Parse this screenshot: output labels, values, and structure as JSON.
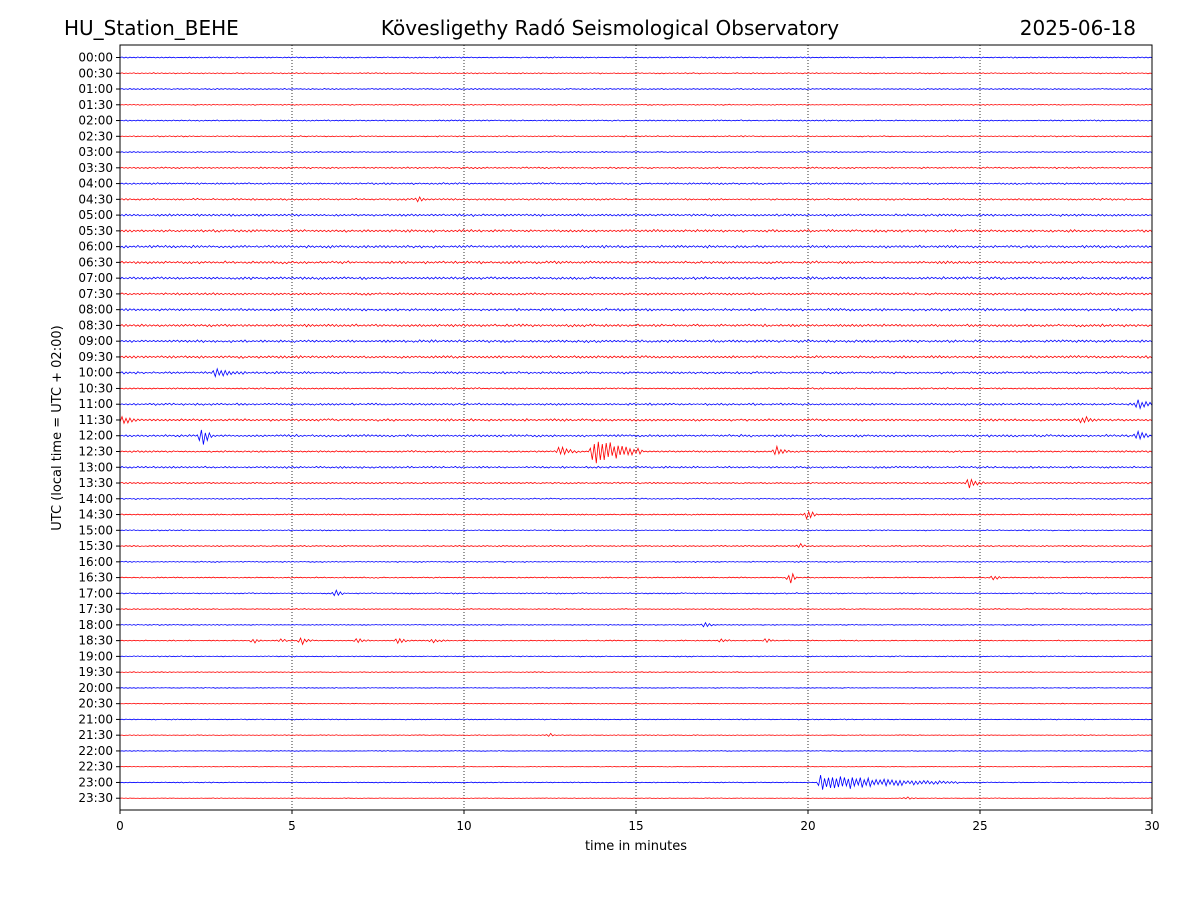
{
  "header": {
    "station": "HU_Station_BEHE",
    "observatory": "Kövesligethy Radó Seismological Observatory",
    "date": "2025-06-18"
  },
  "colors": {
    "even_hour_trace": "#0000ff",
    "half_hour_trace": "#ff0000"
  },
  "chart_data": {
    "type": "line",
    "title": "Kövesligethy Radó Seismological Observatory",
    "xlabel": "time in minutes",
    "ylabel": "UTC (local time = UTC + 02:00)",
    "xlim": [
      0,
      30
    ],
    "x_ticks": [
      0,
      5,
      10,
      15,
      20,
      25,
      30
    ],
    "grid": "vertical dotted lines at x ticks",
    "row_labels": [
      "00:00",
      "00:30",
      "01:00",
      "01:30",
      "02:00",
      "02:30",
      "03:00",
      "03:30",
      "04:00",
      "04:30",
      "05:00",
      "05:30",
      "06:00",
      "06:30",
      "07:00",
      "07:30",
      "08:00",
      "08:30",
      "09:00",
      "09:30",
      "10:00",
      "10:30",
      "11:00",
      "11:30",
      "12:00",
      "12:30",
      "13:00",
      "13:30",
      "14:00",
      "14:30",
      "15:00",
      "15:30",
      "16:00",
      "16:30",
      "17:00",
      "17:30",
      "18:00",
      "18:30",
      "19:00",
      "19:30",
      "20:00",
      "20:30",
      "21:00",
      "21:30",
      "22:00",
      "22:30",
      "23:00",
      "23:30"
    ],
    "row_noise": [
      0.5,
      0.45,
      0.45,
      0.4,
      0.5,
      0.45,
      0.5,
      0.6,
      0.7,
      0.7,
      0.9,
      1.0,
      1.0,
      1.0,
      1.0,
      0.9,
      1.0,
      1.0,
      1.0,
      1.0,
      0.9,
      0.6,
      0.8,
      0.9,
      0.9,
      0.7,
      0.8,
      0.6,
      0.5,
      0.5,
      0.45,
      0.5,
      0.45,
      0.45,
      0.5,
      0.4,
      0.4,
      0.4,
      0.4,
      0.35,
      0.3,
      0.3,
      0.35,
      0.3,
      0.3,
      0.25,
      0.35,
      0.25
    ],
    "events": [
      {
        "row": "04:30",
        "t": 8.7,
        "amp": 0.9,
        "dur": 0.2
      },
      {
        "row": "10:00",
        "t": 2.8,
        "amp": 1.2,
        "dur": 0.8
      },
      {
        "row": "11:00",
        "t": 29.6,
        "amp": 1.4,
        "dur": 0.5
      },
      {
        "row": "11:30",
        "t": 0.1,
        "amp": 1.5,
        "dur": 0.4
      },
      {
        "row": "11:30",
        "t": 28.0,
        "amp": 1.2,
        "dur": 0.4
      },
      {
        "row": "12:00",
        "t": 2.4,
        "amp": 3.5,
        "dur": 0.3
      },
      {
        "row": "12:00",
        "t": 29.6,
        "amp": 2.0,
        "dur": 0.3
      },
      {
        "row": "12:30",
        "t": 12.8,
        "amp": 1.6,
        "dur": 0.5
      },
      {
        "row": "12:30",
        "t": 13.8,
        "amp": 6.0,
        "dur": 1.4
      },
      {
        "row": "12:30",
        "t": 19.1,
        "amp": 1.6,
        "dur": 0.4
      },
      {
        "row": "13:30",
        "t": 24.7,
        "amp": 1.5,
        "dur": 0.4
      },
      {
        "row": "14:30",
        "t": 20.0,
        "amp": 1.8,
        "dur": 0.3
      },
      {
        "row": "15:30",
        "t": 19.8,
        "amp": 0.8,
        "dur": 0.2
      },
      {
        "row": "16:30",
        "t": 19.5,
        "amp": 2.0,
        "dur": 0.2
      },
      {
        "row": "16:30",
        "t": 25.4,
        "amp": 0.8,
        "dur": 0.3
      },
      {
        "row": "17:00",
        "t": 6.3,
        "amp": 1.2,
        "dur": 0.2
      },
      {
        "row": "18:00",
        "t": 17.0,
        "amp": 1.2,
        "dur": 0.2
      },
      {
        "row": "18:30",
        "t": 3.9,
        "amp": 0.8,
        "dur": 0.3
      },
      {
        "row": "18:30",
        "t": 4.7,
        "amp": 0.8,
        "dur": 0.2
      },
      {
        "row": "18:30",
        "t": 5.3,
        "amp": 1.2,
        "dur": 0.3
      },
      {
        "row": "18:30",
        "t": 6.9,
        "amp": 0.8,
        "dur": 0.4
      },
      {
        "row": "18:30",
        "t": 8.1,
        "amp": 0.8,
        "dur": 0.4
      },
      {
        "row": "18:30",
        "t": 9.1,
        "amp": 0.7,
        "dur": 0.4
      },
      {
        "row": "18:30",
        "t": 17.5,
        "amp": 0.7,
        "dur": 0.3
      },
      {
        "row": "18:30",
        "t": 18.8,
        "amp": 0.7,
        "dur": 0.3
      },
      {
        "row": "21:30",
        "t": 12.5,
        "amp": 0.7,
        "dur": 0.2
      },
      {
        "row": "23:00",
        "t": 20.4,
        "amp": 3.0,
        "dur": 4.0
      },
      {
        "row": "23:30",
        "t": 22.9,
        "amp": 0.5,
        "dur": 0.3
      }
    ]
  }
}
